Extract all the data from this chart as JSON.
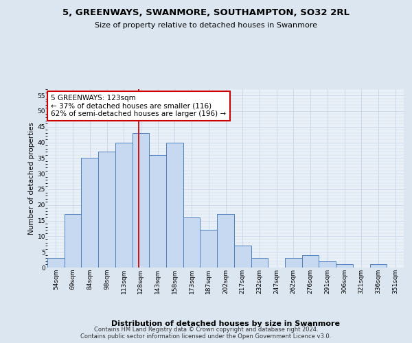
{
  "title": "5, GREENWAYS, SWANMORE, SOUTHAMPTON, SO32 2RL",
  "subtitle": "Size of property relative to detached houses in Swanmore",
  "xlabel": "Distribution of detached houses by size in Swanmore",
  "ylabel": "Number of detached properties",
  "categories": [
    "54sqm",
    "69sqm",
    "84sqm",
    "98sqm",
    "113sqm",
    "128sqm",
    "143sqm",
    "158sqm",
    "173sqm",
    "187sqm",
    "202sqm",
    "217sqm",
    "232sqm",
    "247sqm",
    "262sqm",
    "276sqm",
    "291sqm",
    "306sqm",
    "321sqm",
    "336sqm",
    "351sqm"
  ],
  "values": [
    3,
    17,
    35,
    37,
    40,
    43,
    36,
    40,
    16,
    12,
    17,
    7,
    3,
    0,
    3,
    4,
    2,
    1,
    0,
    1,
    0
  ],
  "bar_color": "#c6d9f0",
  "bar_edge_color": "#4f81bd",
  "grid_color": "#c8d4e8",
  "vline_x": 4.87,
  "vline_color": "#cc0000",
  "annotation_text": "5 GREENWAYS: 123sqm\n← 37% of detached houses are smaller (116)\n62% of semi-detached houses are larger (196) →",
  "annotation_box_color": "#ffffff",
  "annotation_box_edge": "#cc0000",
  "ylim": [
    0,
    57
  ],
  "yticks": [
    0,
    5,
    10,
    15,
    20,
    25,
    30,
    35,
    40,
    45,
    50,
    55
  ],
  "footer": "Contains HM Land Registry data © Crown copyright and database right 2024.\nContains public sector information licensed under the Open Government Licence v3.0.",
  "bg_color": "#dce6f1",
  "plot_bg_color": "#eaf0f8",
  "title_fontsize": 9.5,
  "subtitle_fontsize": 8,
  "ylabel_fontsize": 7.5,
  "xlabel_fontsize": 8,
  "tick_fontsize": 6.5,
  "annotation_fontsize": 7.5
}
